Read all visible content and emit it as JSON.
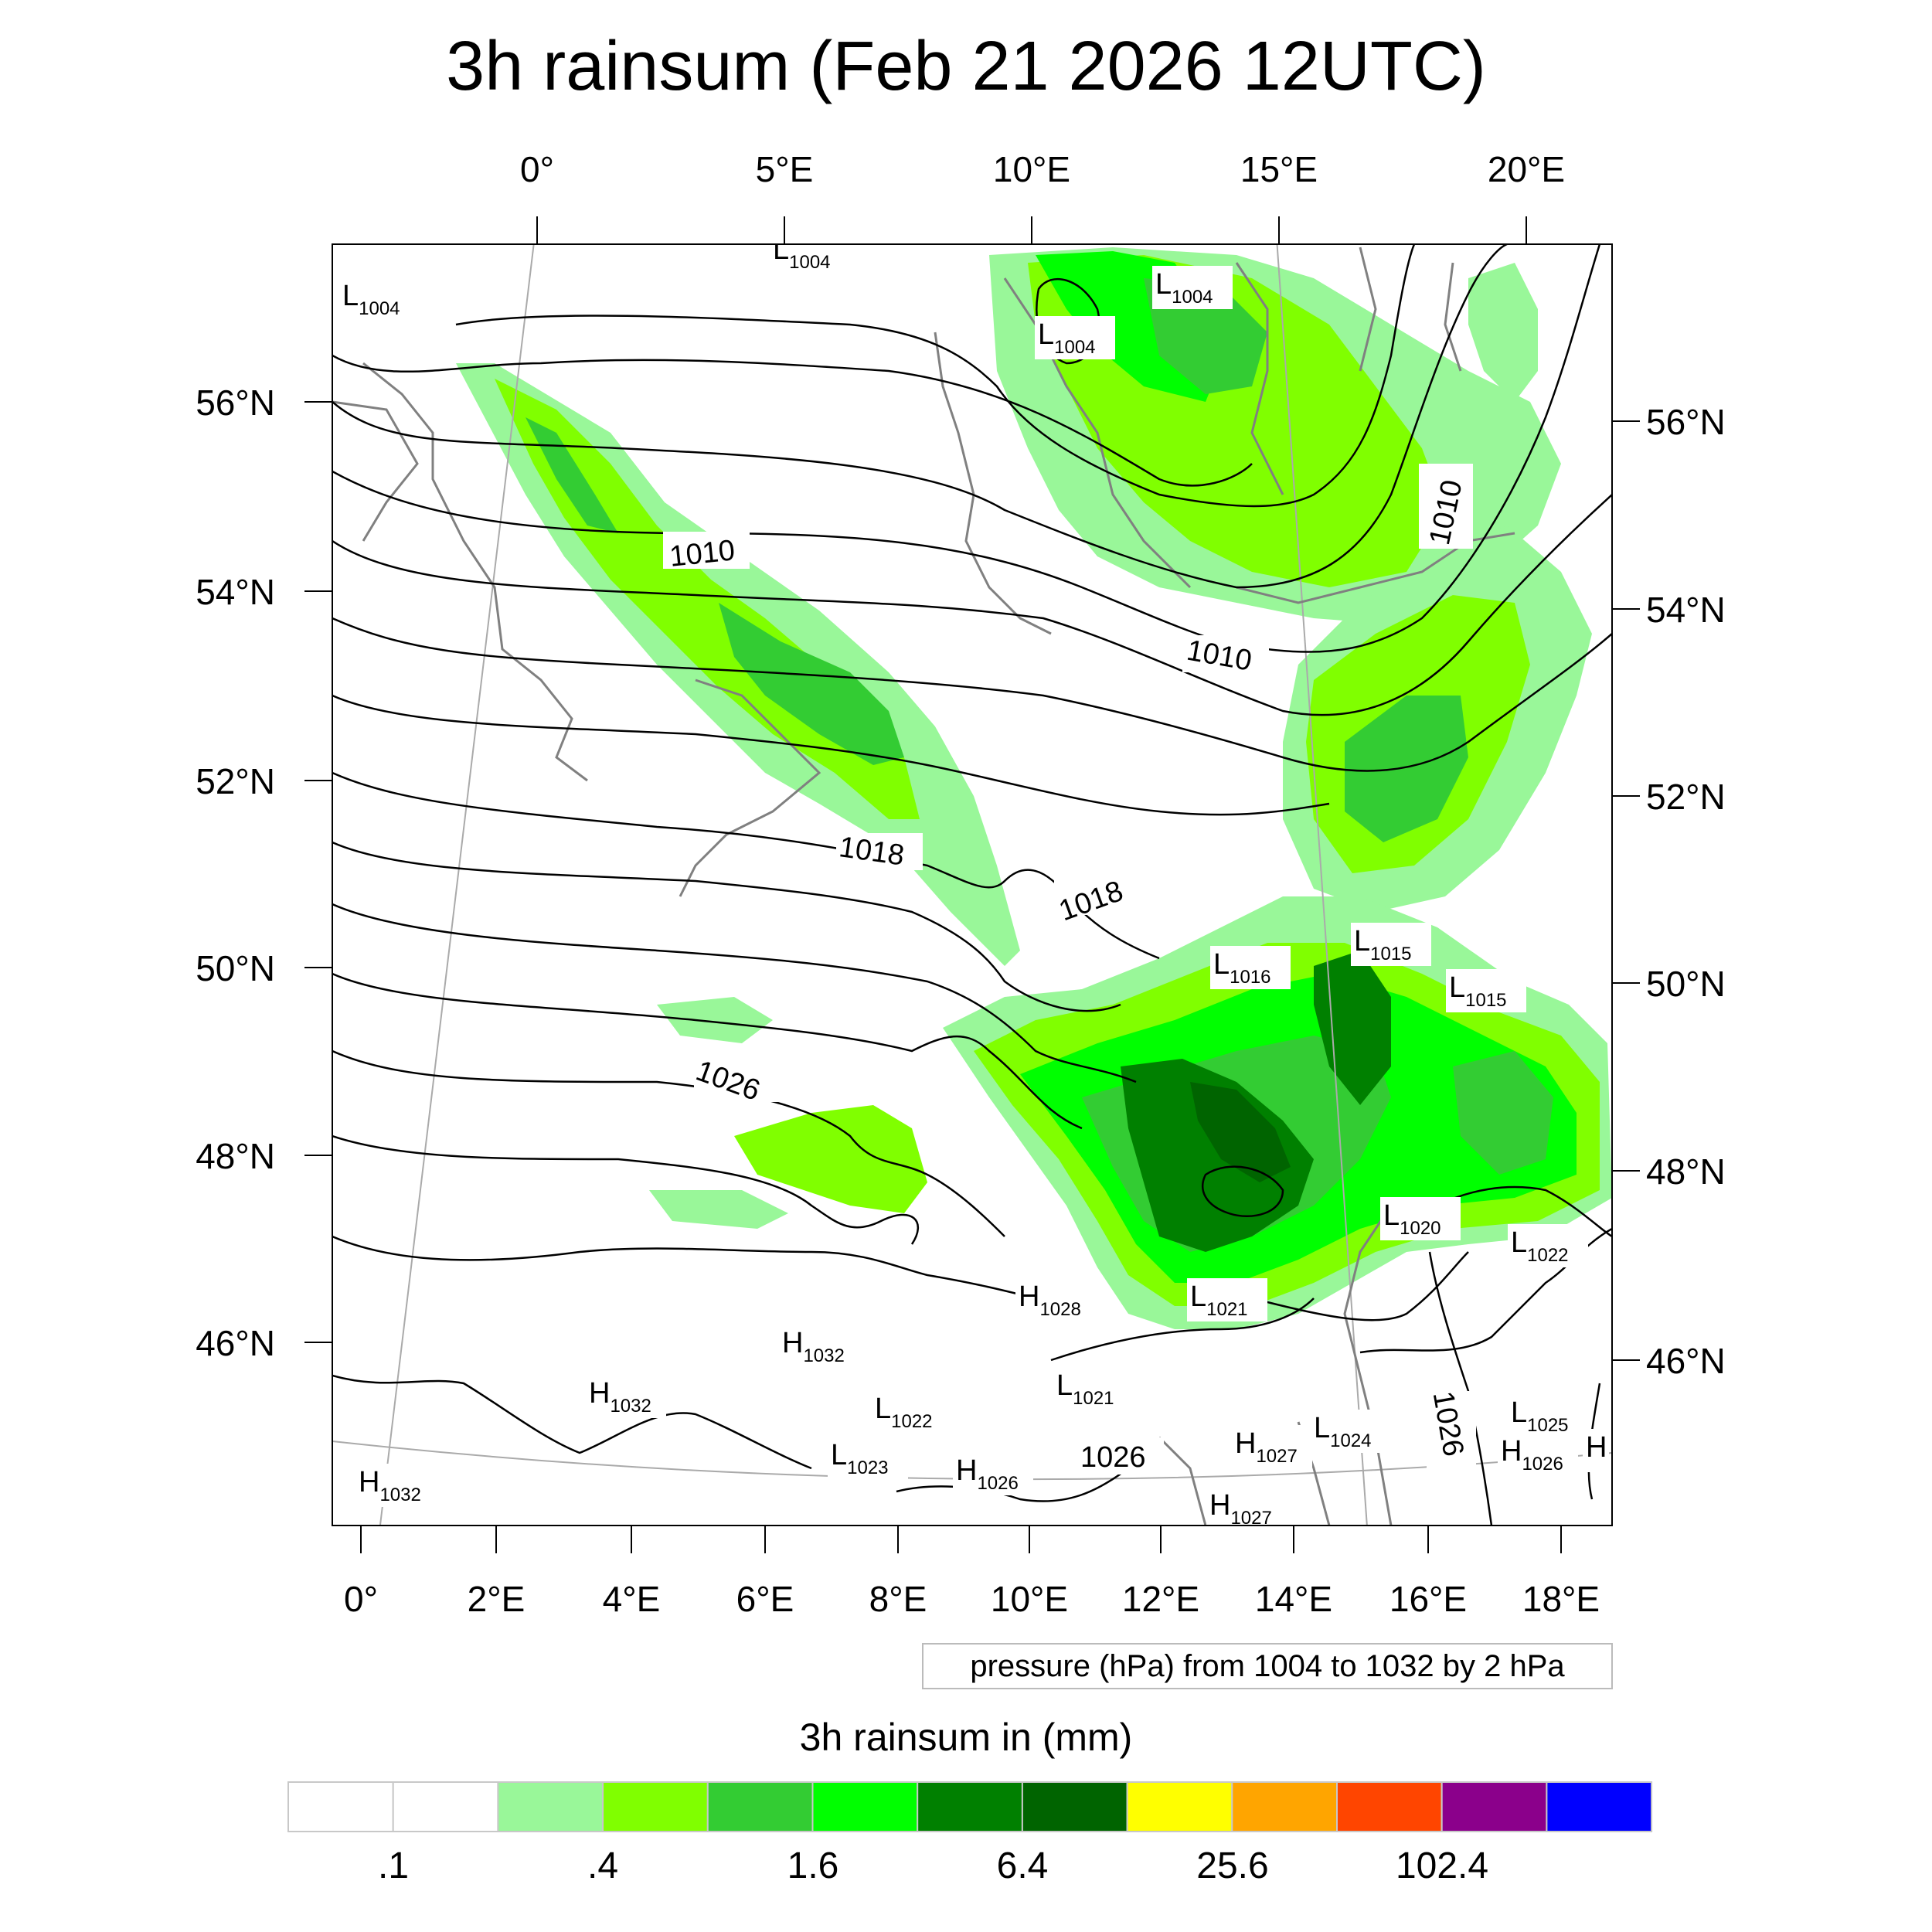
{
  "title": "3h rainsum (Feb 21 2026 12UTC)",
  "top_lon_labels": [
    "0°",
    "5°E",
    "10°E",
    "15°E",
    "20°E"
  ],
  "bottom_lon_labels": [
    "0°",
    "2°E",
    "4°E",
    "6°E",
    "8°E",
    "10°E",
    "12°E",
    "14°E",
    "16°E",
    "18°E"
  ],
  "left_lat_labels": [
    "56°N",
    "54°N",
    "52°N",
    "50°N",
    "48°N",
    "46°N"
  ],
  "right_lat_labels": [
    "56°N",
    "54°N",
    "52°N",
    "50°N",
    "48°N",
    "46°N"
  ],
  "contour_labels": [
    "1010",
    "1010",
    "1010",
    "1018",
    "1018",
    "1026",
    "1026",
    "1026"
  ],
  "pressure_centers": [
    {
      "type": "L",
      "value": "1004"
    },
    {
      "type": "L",
      "value": "1004"
    },
    {
      "type": "L",
      "value": "1004"
    },
    {
      "type": "L",
      "value": "1004"
    },
    {
      "type": "L",
      "value": "1016"
    },
    {
      "type": "L",
      "value": "1015"
    },
    {
      "type": "L",
      "value": "1015"
    },
    {
      "type": "L",
      "value": "1020"
    },
    {
      "type": "L",
      "value": "1022"
    },
    {
      "type": "L",
      "value": "1021"
    },
    {
      "type": "H",
      "value": "1028"
    },
    {
      "type": "H",
      "value": "1032"
    },
    {
      "type": "H",
      "value": "1032"
    },
    {
      "type": "L",
      "value": "1022"
    },
    {
      "type": "L",
      "value": "1021"
    },
    {
      "type": "L",
      "value": "1023"
    },
    {
      "type": "H",
      "value": "1026"
    },
    {
      "type": "H",
      "value": "1027"
    },
    {
      "type": "L",
      "value": "1024"
    },
    {
      "type": "L",
      "value": "1025"
    },
    {
      "type": "H",
      "value": "1026"
    },
    {
      "type": "H",
      "value": "1032"
    },
    {
      "type": "H",
      "value": "1027"
    },
    {
      "type": "H",
      "value": ""
    }
  ],
  "contour_note": "pressure (hPa) from 1004 to 1032 by 2 hPa",
  "colorbar": {
    "title": "3h rainsum in (mm)",
    "colors": [
      "#ffffff",
      "#ffffff",
      "#99f799",
      "#80ff00",
      "#33cc33",
      "#00ff00",
      "#008000",
      "#006400",
      "#ffff00",
      "#ffa500",
      "#ff4500",
      "#8b008b",
      "#0000ff"
    ],
    "labels": [
      ".1",
      ".4",
      "1.6",
      "6.4",
      "25.6",
      "102.4"
    ]
  }
}
